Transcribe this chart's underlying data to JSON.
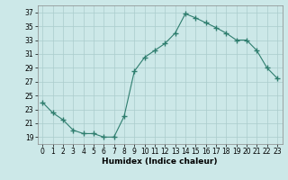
{
  "x": [
    0,
    1,
    2,
    3,
    4,
    5,
    6,
    7,
    8,
    9,
    10,
    11,
    12,
    13,
    14,
    15,
    16,
    17,
    18,
    19,
    20,
    21,
    22,
    23
  ],
  "y": [
    24,
    22.5,
    21.5,
    20,
    19.5,
    19.5,
    19,
    19,
    22,
    28.5,
    30.5,
    31.5,
    32.5,
    34,
    36.8,
    36.2,
    35.5,
    34.8,
    34,
    33,
    33,
    31.5,
    29,
    27.5
  ],
  "line_color": "#2e7d6e",
  "marker": "+",
  "marker_size": 4,
  "marker_lw": 1.0,
  "line_width": 0.8,
  "bg_color": "#cce8e8",
  "grid_color": "#aacccc",
  "xlabel": "Humidex (Indice chaleur)",
  "ylim": [
    18,
    38
  ],
  "yticks": [
    19,
    21,
    23,
    25,
    27,
    29,
    31,
    33,
    35,
    37
  ],
  "xlim": [
    -0.5,
    23.5
  ],
  "xticks": [
    0,
    1,
    2,
    3,
    4,
    5,
    6,
    7,
    8,
    9,
    10,
    11,
    12,
    13,
    14,
    15,
    16,
    17,
    18,
    19,
    20,
    21,
    22,
    23
  ],
  "axis_fontsize": 6.5,
  "tick_fontsize": 5.5,
  "xlabel_fontsize": 6.5
}
